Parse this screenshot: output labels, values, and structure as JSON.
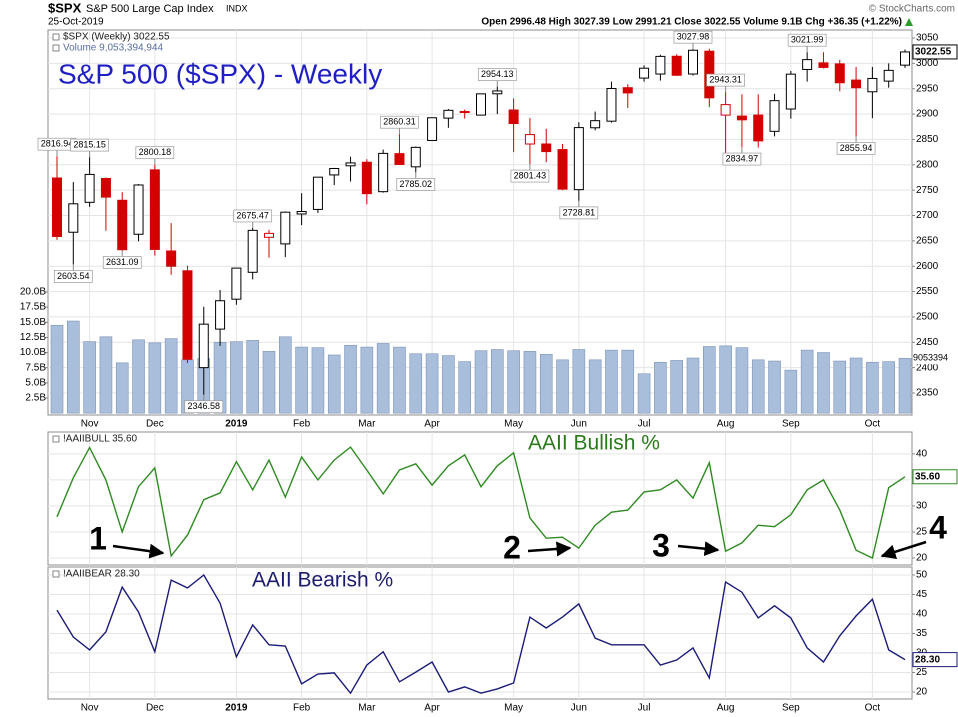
{
  "header": {
    "symbol": "$SPX",
    "name": "S&P 500 Large Cap Index",
    "exchange": "INDX",
    "date": "25-Oct-2019",
    "quote": "Open 2996.48 High 3027.39 Low 2991.21 Close 3022.55 Volume 9.1B Chg +36.35 (+1.22%)",
    "credit": "© StockCharts.com"
  },
  "chart_data": [
    {
      "type": "candlestick",
      "title": "S&P 500 ($SPX) - Weekly",
      "legend_entries": [
        "$SPX (Weekly) 3022.55",
        "Volume 9,053,394,944"
      ],
      "categories": [
        null,
        null,
        "Nov",
        null,
        null,
        null,
        "Dec",
        null,
        null,
        null,
        null,
        "2019",
        null,
        null,
        null,
        "Feb",
        null,
        null,
        null,
        "Mar",
        null,
        null,
        null,
        "Apr",
        null,
        null,
        null,
        null,
        "May",
        null,
        null,
        null,
        "Jun",
        null,
        null,
        null,
        "Jul",
        null,
        null,
        null,
        null,
        "Aug",
        null,
        null,
        null,
        "Sep",
        null,
        null,
        null,
        null,
        "Oct",
        null,
        null
      ],
      "series": [
        {
          "open": [
            2773.94,
            2667,
            2726,
            2773,
            2730,
            2663,
            2790,
            2630,
            2591,
            2400,
            2476,
            2535,
            2588,
            2657,
            2644,
            2703,
            2712,
            2780,
            2798,
            2805,
            2747,
            2822,
            2796,
            2848,
            2892,
            2904,
            2898,
            2940,
            2908,
            2841,
            2841,
            2830,
            2751,
            2873,
            2886,
            2952,
            2971,
            2979,
            3014,
            2979,
            3024,
            2898,
            2896,
            2898,
            2866,
            2910,
            2988,
            3001,
            2999,
            2967,
            2944,
            2965,
            2996.48
          ],
          "high": [
            2816.94,
            2766,
            2815.15,
            2775,
            2746,
            2762,
            2800.18,
            2685,
            2601,
            2520,
            2553,
            2597,
            2675.47,
            2672,
            2708,
            2744,
            2775,
            2794,
            2816,
            2811,
            2830,
            2860.31,
            2836,
            2893,
            2910,
            2909,
            2940,
            2954.13,
            2931,
            2892,
            2871,
            2841,
            2884,
            2905,
            2964,
            2959,
            2996,
            3017,
            3018,
            3027.98,
            3029,
            2943.31,
            2939,
            2939,
            2940,
            2985,
            3021.99,
            3022,
            3007,
            2993,
            2993,
            3000,
            3027.39
          ],
          "low": [
            2651.89,
            2603.54,
            2717,
            2670,
            2631.09,
            2649,
            2621,
            2583,
            2409,
            2346.58,
            2443,
            2524,
            2574,
            2617,
            2618,
            2681,
            2705,
            2760,
            2767,
            2722,
            2745,
            2800,
            2785.02,
            2848,
            2873,
            2891,
            2898,
            2900,
            2825,
            2801.43,
            2805,
            2750,
            2728.81,
            2868,
            2883,
            2912,
            2964,
            2966,
            2975,
            2976,
            2914,
            2822,
            2834.97,
            2834,
            2856,
            2891,
            2964,
            2990,
            2945,
            2855.94,
            2892,
            2952,
            2991.21
          ],
          "close": [
            2658.69,
            2723.06,
            2781.01,
            2736.27,
            2632.56,
            2760.17,
            2633.08,
            2599.95,
            2416.62,
            2485.74,
            2531.94,
            2596.26,
            2670.71,
            2664.76,
            2706.53,
            2707.88,
            2775.6,
            2792.67,
            2803.69,
            2743.07,
            2822.48,
            2800.71,
            2834.4,
            2892.74,
            2907.41,
            2905.03,
            2939.88,
            2945.64,
            2881.4,
            2859.53,
            2826.06,
            2752.06,
            2873.34,
            2886.98,
            2950.46,
            2941.76,
            2990.41,
            3013.77,
            2976.61,
            3025.86,
            2932.05,
            2918.65,
            2888.68,
            2847.11,
            2926.46,
            2978.71,
            3007.39,
            2992.07,
            2961.79,
            2952.01,
            2970.27,
            2986.2,
            3022.55
          ],
          "up_color": "#000000",
          "down_color": "#d40000"
        },
        {
          "type": "bar",
          "axis": "y2",
          "color": "#a9bedb",
          "values": [
            14.5,
            15.2,
            11.8,
            12.6,
            8.3,
            12.1,
            11.6,
            12.3,
            8.8,
            9.0,
            11.7,
            11.8,
            12.0,
            10.2,
            12.6,
            10.9,
            10.8,
            9.6,
            11.2,
            10.9,
            11.5,
            10.9,
            9.8,
            9.8,
            9.5,
            8.5,
            10.3,
            10.5,
            10.3,
            10.2,
            9.7,
            8.8,
            10.5,
            8.8,
            10.4,
            10.4,
            6.5,
            8.4,
            8.7,
            9.1,
            11.0,
            11.1,
            10.8,
            8.8,
            8.6,
            7.1,
            10.4,
            10.0,
            8.6,
            9.1,
            8.4,
            8.5,
            9.05
          ],
          "last_label": "9053394"
        }
      ],
      "labeled_highs": [
        0,
        2,
        6,
        12,
        21,
        27,
        39,
        41,
        46
      ],
      "labeled_lows": [
        1,
        4,
        9,
        22,
        29,
        32,
        42,
        49
      ],
      "ylim": [
        2306.6,
        3065.8
      ],
      "yticks": [
        2350,
        2400,
        2450,
        2500,
        2550,
        2600,
        2650,
        2700,
        2750,
        2800,
        2850,
        2900,
        2950,
        3000,
        3050
      ],
      "y2lim": [
        -0.3,
        63.2
      ],
      "y2ticks": [
        {
          "value": 2.5,
          "label": "2.5B"
        },
        {
          "value": 5,
          "label": "5.0B"
        },
        {
          "value": 7.5,
          "label": "7.5B"
        },
        {
          "value": 10,
          "label": "10.0B"
        },
        {
          "value": 12.5,
          "label": "12.5B"
        },
        {
          "value": 15,
          "label": "15.0B"
        },
        {
          "value": 17.5,
          "label": "17.5B"
        },
        {
          "value": 20,
          "label": "20.0B"
        }
      ],
      "grid": true
    },
    {
      "type": "line",
      "title": "AAII Bullish %",
      "legend_entries": [
        "!AAIIBULL 35.60"
      ],
      "color": "#2f8a22",
      "values": [
        27.9,
        35.4,
        41.2,
        35.0,
        25.0,
        33.7,
        37.3,
        20.4,
        24.4,
        31.2,
        32.5,
        38.5,
        33.1,
        38.8,
        31.7,
        39.4,
        35.0,
        38.8,
        41.3,
        36.9,
        32.3,
        36.9,
        38.1,
        34.0,
        37.7,
        39.8,
        33.7,
        37.7,
        40.2,
        27.7,
        23.8,
        24.0,
        21.9,
        26.3,
        28.8,
        29.2,
        32.7,
        33.1,
        35.0,
        31.5,
        38.3,
        21.3,
        22.9,
        26.3,
        26.0,
        28.3,
        33.1,
        35.0,
        29.2,
        21.5,
        20.0,
        33.5,
        35.6
      ],
      "last_value_label": "35.60",
      "annotations": [
        "1",
        "2",
        "3",
        "4"
      ],
      "ylim": [
        18.65,
        44.2
      ],
      "yticks": [
        20,
        25,
        30,
        35,
        40
      ],
      "grid": true
    },
    {
      "type": "line",
      "title": "AAII Bearish %",
      "legend_entries": [
        "!AAIIBEAR 28.30"
      ],
      "color": "#1c1c78",
      "categories": [
        null,
        null,
        "Nov",
        null,
        null,
        null,
        "Dec",
        null,
        null,
        null,
        null,
        "2019",
        null,
        null,
        null,
        "Feb",
        null,
        null,
        null,
        "Mar",
        null,
        null,
        null,
        "Apr",
        null,
        null,
        null,
        null,
        "May",
        null,
        null,
        null,
        "Jun",
        null,
        null,
        null,
        "Jul",
        null,
        null,
        null,
        null,
        "Aug",
        null,
        null,
        null,
        "Sep",
        null,
        null,
        null,
        null,
        "Oct",
        null,
        null
      ],
      "values": [
        41.0,
        34.1,
        30.8,
        35.4,
        46.9,
        40.5,
        30.3,
        48.7,
        46.7,
        50.0,
        42.8,
        29.0,
        37.2,
        32.1,
        31.8,
        22.1,
        24.6,
        24.9,
        19.7,
        26.9,
        30.3,
        22.6,
        25.1,
        27.7,
        20.0,
        21.3,
        19.7,
        20.8,
        22.3,
        39.2,
        36.4,
        39.2,
        42.6,
        33.8,
        32.1,
        32.1,
        32.1,
        26.9,
        28.2,
        31.3,
        23.6,
        48.2,
        45.6,
        39.0,
        42.1,
        39.0,
        31.3,
        27.7,
        34.4,
        39.5,
        43.8,
        30.8,
        28.3
      ],
      "last_value_label": "28.30",
      "ylim": [
        18.2,
        52.05
      ],
      "yticks": [
        20,
        25,
        30,
        35,
        40,
        45,
        50
      ],
      "grid": true
    }
  ]
}
